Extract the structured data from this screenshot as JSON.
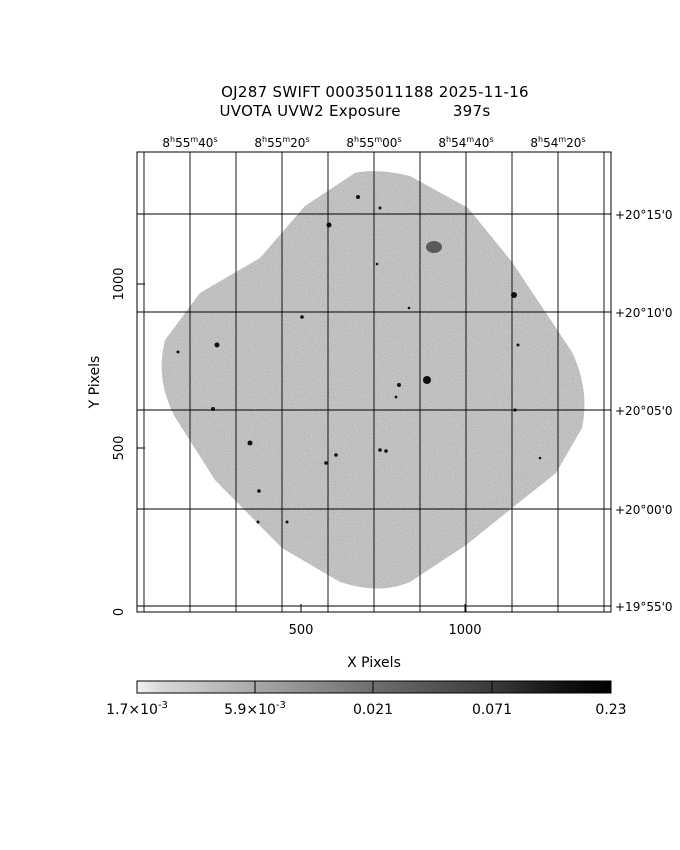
{
  "header": {
    "line1": "OJ287 SWIFT 00035011188 2025-11-16",
    "line2_instrument": "UVOTA UVW2 Exposure",
    "line2_exposure": "397s"
  },
  "axes": {
    "xlabel": "X Pixels",
    "ylabel": "Y Pixels",
    "x_ticks": [
      "500",
      "1000"
    ],
    "y_ticks": [
      "0",
      "500",
      "1000"
    ]
  },
  "ra_ticks": [
    {
      "h": "8",
      "m": "55",
      "s": "40"
    },
    {
      "h": "8",
      "m": "55",
      "s": "20"
    },
    {
      "h": "8",
      "m": "55",
      "s": "00"
    },
    {
      "h": "8",
      "m": "54",
      "s": "40"
    },
    {
      "h": "8",
      "m": "54",
      "s": "20"
    }
  ],
  "dec_ticks": [
    "+20°15'0",
    "+20°10'0",
    "+20°05'0",
    "+20°00'0",
    "+19°55'0"
  ],
  "colorbar": {
    "labels": [
      {
        "mant": "1.7×10",
        "exp": "-3"
      },
      {
        "mant": "5.9×10",
        "exp": "-3"
      },
      {
        "mant": "0.021",
        "exp": ""
      },
      {
        "mant": "0.071",
        "exp": ""
      },
      {
        "mant": "0.23",
        "exp": ""
      }
    ]
  }
}
